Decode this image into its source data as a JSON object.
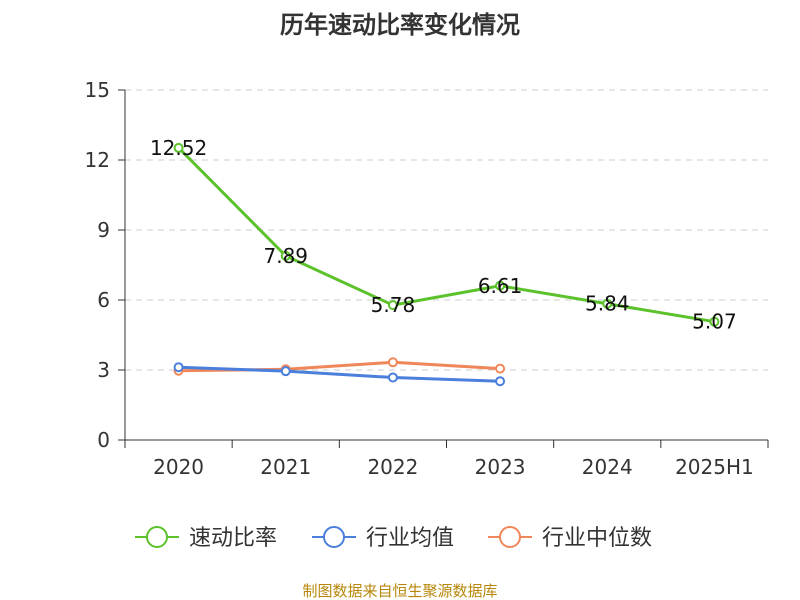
{
  "chart_data": {
    "type": "line",
    "title": "历年速动比率变化情况",
    "categories": [
      "2020",
      "2021",
      "2022",
      "2023",
      "2024",
      "2025H1"
    ],
    "ylim": [
      0,
      15
    ],
    "yticks": [
      0,
      3,
      6,
      9,
      12,
      15
    ],
    "grid": true,
    "legend_position": "bottom",
    "series": [
      {
        "name": "速动比率",
        "color": "#5cc22b",
        "values": [
          12.52,
          7.89,
          5.78,
          6.61,
          5.84,
          5.07
        ],
        "labels": [
          "12.52",
          "7.89",
          "5.78",
          "6.61",
          "5.84",
          "5.07"
        ]
      },
      {
        "name": "行业均值",
        "color": "#4a7fdc",
        "values": [
          3.12,
          2.95,
          2.68,
          2.52,
          null,
          null
        ]
      },
      {
        "name": "行业中位数",
        "color": "#f0875a",
        "values": [
          2.97,
          3.03,
          3.33,
          3.06,
          null,
          null
        ]
      }
    ]
  },
  "footer": {
    "source": "制图数据来自恒生聚源数据库"
  }
}
